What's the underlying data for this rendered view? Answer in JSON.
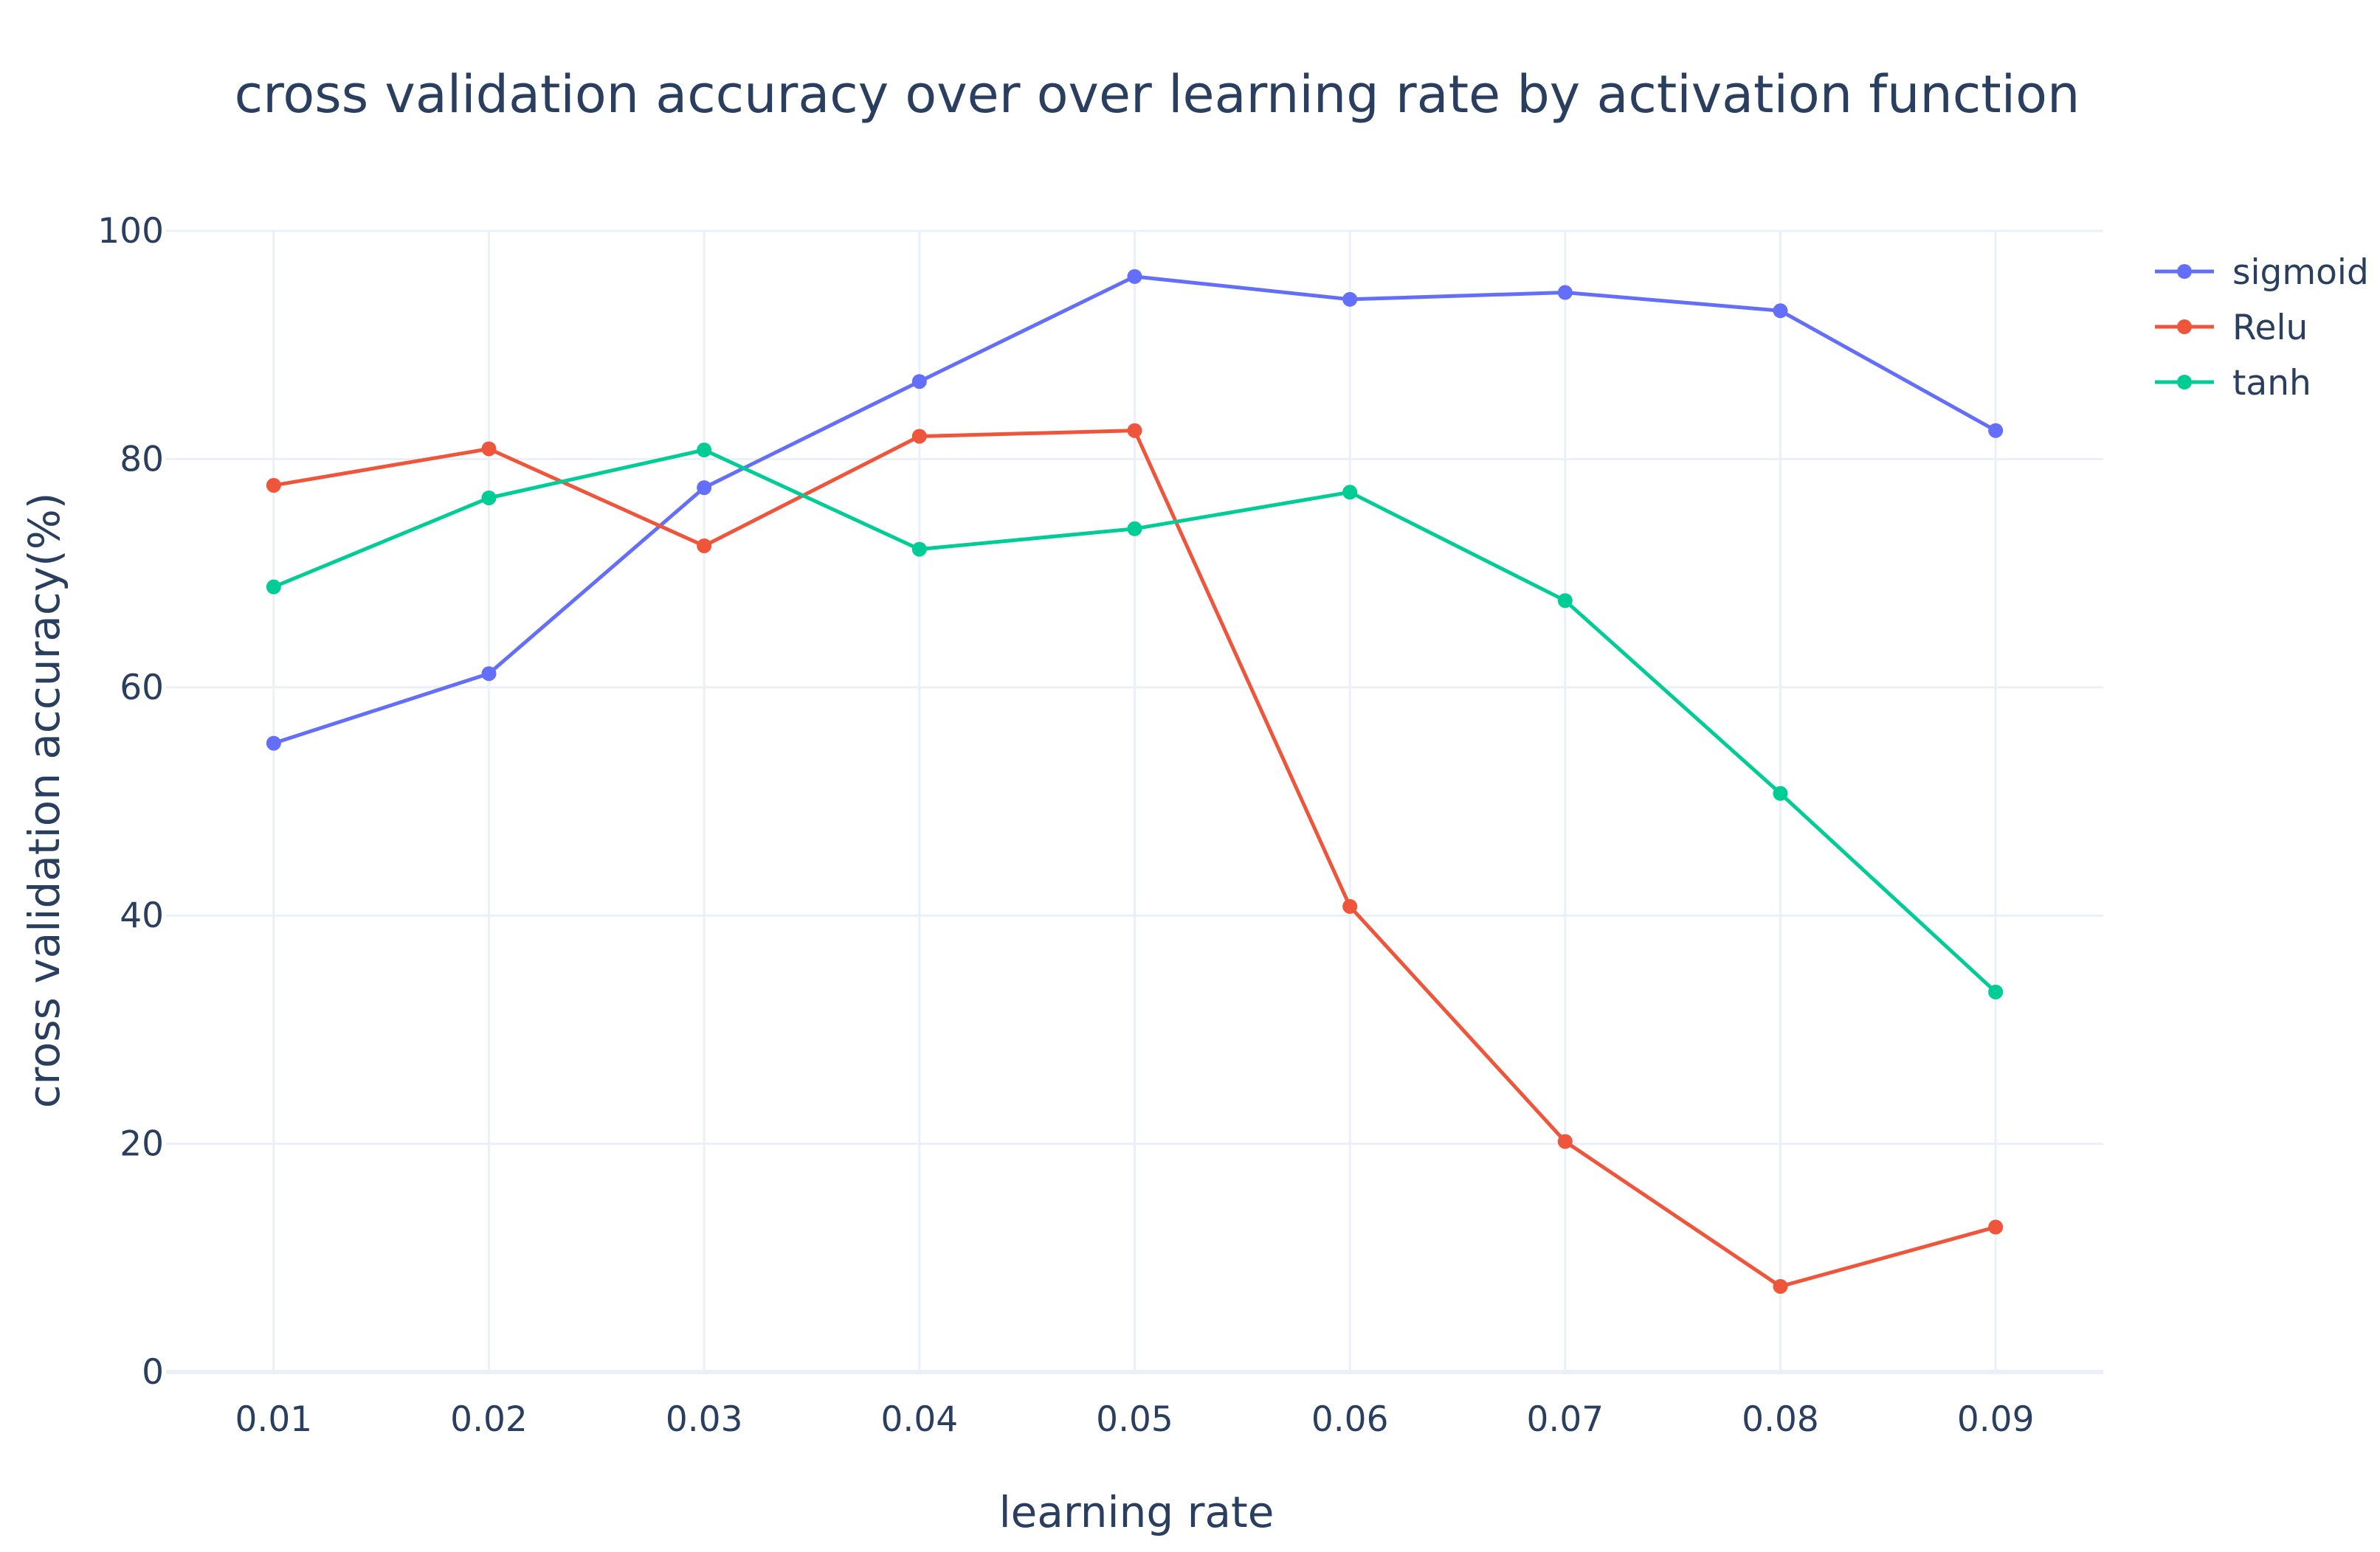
{
  "chart_data": {
    "type": "line",
    "title": "cross validation accuracy over over learning rate by activation function",
    "xlabel": "learning rate",
    "ylabel": "cross validation accuracy(%)",
    "x": [
      0.01,
      0.02,
      0.03,
      0.04,
      0.05,
      0.06,
      0.07,
      0.08,
      0.09
    ],
    "x_tick_labels": [
      "0.01",
      "0.02",
      "0.03",
      "0.04",
      "0.05",
      "0.06",
      "0.07",
      "0.08",
      "0.09"
    ],
    "xlim": [
      0.005,
      0.095
    ],
    "ylim": [
      0,
      100
    ],
    "y_ticks": [
      0,
      20,
      40,
      60,
      80,
      100
    ],
    "y_tick_labels": [
      "0",
      "20",
      "40",
      "60",
      "80",
      "100"
    ],
    "grid": true,
    "legend_position": "top-right",
    "series": [
      {
        "name": "sigmoid",
        "color": "#636efa",
        "values": [
          55.1,
          61.2,
          77.5,
          86.8,
          96.0,
          94.0,
          94.6,
          93.0,
          82.5
        ]
      },
      {
        "name": "Relu",
        "color": "#ef553b",
        "values": [
          77.7,
          80.9,
          72.4,
          82.0,
          82.5,
          40.8,
          20.2,
          7.5,
          12.7
        ]
      },
      {
        "name": "tanh",
        "color": "#00cc96",
        "values": [
          68.8,
          76.6,
          80.8,
          72.1,
          73.9,
          77.1,
          67.6,
          50.7,
          33.3
        ]
      }
    ]
  }
}
